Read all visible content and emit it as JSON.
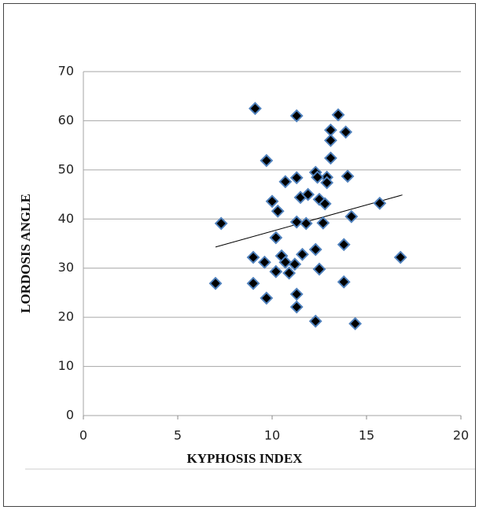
{
  "chart_data": {
    "type": "scatter",
    "x_label": "KYPHOSIS INDEX",
    "y_label": "LORDOSIS ANGLE",
    "xlim": [
      0,
      20
    ],
    "xticks": [
      0,
      5,
      10,
      15,
      20
    ],
    "ylim": [
      0,
      70
    ],
    "yticks": [
      0,
      10,
      20,
      30,
      40,
      50,
      60,
      70
    ],
    "grid": true,
    "color": "#000000",
    "edge_color": "#4f81bd",
    "x": [
      9.1,
      11.3,
      13.5,
      13.1,
      13.9,
      13.1,
      9.7,
      13.1,
      12.3,
      12.9,
      14.0,
      10.7,
      11.3,
      12.4,
      12.9,
      11.5,
      11.9,
      12.5,
      10.0,
      12.8,
      15.7,
      10.3,
      14.2,
      7.3,
      11.3,
      11.8,
      12.7,
      10.2,
      13.8,
      12.3,
      11.6,
      10.5,
      9.0,
      16.8,
      9.6,
      10.7,
      11.2,
      10.2,
      10.9,
      12.5,
      7.0,
      9.0,
      13.8,
      11.3,
      9.7,
      11.3,
      12.3,
      14.4
    ],
    "values": [
      62.5,
      61,
      61.2,
      58.1,
      57.7,
      56,
      51.9,
      52.4,
      49.5,
      48.5,
      48.7,
      47.6,
      48.4,
      48.5,
      47.4,
      44.4,
      45,
      44,
      43.6,
      43.1,
      43.2,
      41.6,
      40.5,
      39.1,
      39.4,
      39.1,
      39.2,
      36.2,
      34.8,
      33.8,
      32.8,
      32.5,
      32.2,
      32.2,
      31.2,
      31.2,
      30.8,
      29.3,
      29,
      29.8,
      26.9,
      26.9,
      27.2,
      24.7,
      23.9,
      22.1,
      19.2,
      18.7
    ],
    "trendline": {
      "x": [
        7.0,
        16.9
      ],
      "values": [
        34.3,
        44.9
      ],
      "color": "#000000"
    }
  }
}
